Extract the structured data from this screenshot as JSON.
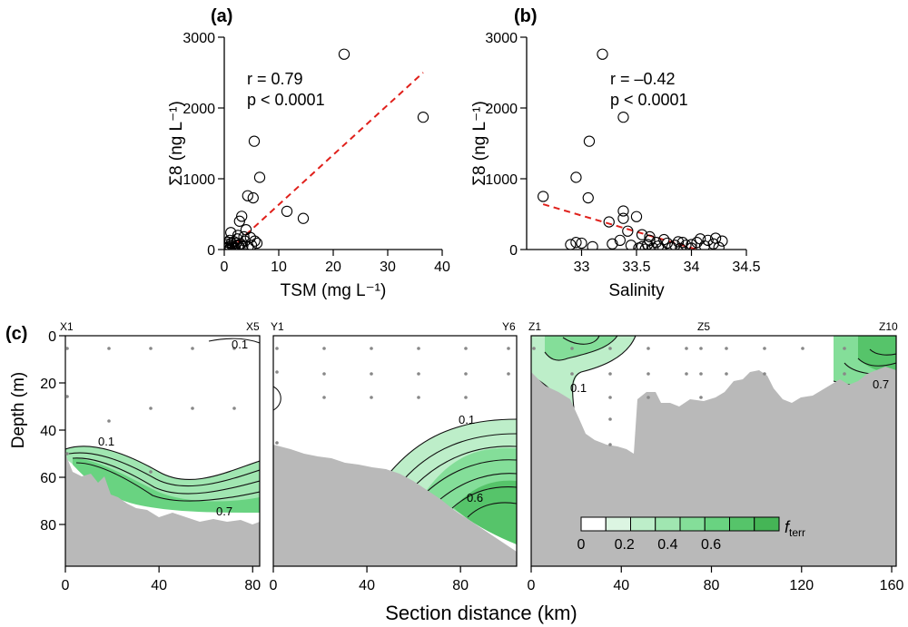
{
  "chart_data": [
    {
      "panel": "(a)",
      "type": "scatter",
      "xlabel": "TSM (mg L⁻¹)",
      "ylabel": "Σ8 (ng L⁻¹)",
      "xlim": [
        0,
        40
      ],
      "ylim": [
        0,
        3000
      ],
      "xticks": [
        "0",
        "10",
        "20",
        "30",
        "40"
      ],
      "yticks": [
        "0",
        "1000",
        "2000",
        "3000"
      ],
      "stat_r": "r = 0.79",
      "stat_p": "p < 0.0001",
      "fit_line": {
        "x": [
          1,
          36.5
        ],
        "y": [
          0,
          2500
        ],
        "color": "#e0201b",
        "style": "dashed"
      },
      "points": [
        {
          "x": 22,
          "y": 2760
        },
        {
          "x": 36.5,
          "y": 1870
        },
        {
          "x": 5.5,
          "y": 1530
        },
        {
          "x": 6.5,
          "y": 1020
        },
        {
          "x": 4.3,
          "y": 760
        },
        {
          "x": 5.3,
          "y": 730
        },
        {
          "x": 11.5,
          "y": 540
        },
        {
          "x": 14.5,
          "y": 440
        },
        {
          "x": 3.2,
          "y": 470
        },
        {
          "x": 2.8,
          "y": 400
        },
        {
          "x": 4.0,
          "y": 280
        },
        {
          "x": 1.2,
          "y": 240
        },
        {
          "x": 2.5,
          "y": 200
        },
        {
          "x": 3.6,
          "y": 180
        },
        {
          "x": 4.8,
          "y": 170
        },
        {
          "x": 5.6,
          "y": 120
        },
        {
          "x": 1.0,
          "y": 130
        },
        {
          "x": 1.8,
          "y": 110
        },
        {
          "x": 2.2,
          "y": 90
        },
        {
          "x": 3.0,
          "y": 80
        },
        {
          "x": 0.6,
          "y": 70
        },
        {
          "x": 1.4,
          "y": 60
        },
        {
          "x": 2.6,
          "y": 55
        },
        {
          "x": 3.4,
          "y": 50
        },
        {
          "x": 0.8,
          "y": 40
        },
        {
          "x": 1.6,
          "y": 35
        },
        {
          "x": 2.0,
          "y": 30
        },
        {
          "x": 4.4,
          "y": 40
        },
        {
          "x": 0.5,
          "y": 20
        },
        {
          "x": 1.1,
          "y": 15
        },
        {
          "x": 1.9,
          "y": 10
        },
        {
          "x": 2.9,
          "y": 20
        },
        {
          "x": 0.3,
          "y": 5
        },
        {
          "x": 0.9,
          "y": 5
        },
        {
          "x": 5.0,
          "y": 60
        },
        {
          "x": 3.8,
          "y": 120
        },
        {
          "x": 2.4,
          "y": 150
        },
        {
          "x": 1.3,
          "y": 90
        },
        {
          "x": 0.7,
          "y": 100
        },
        {
          "x": 6.0,
          "y": 90
        }
      ]
    },
    {
      "panel": "(b)",
      "type": "scatter",
      "xlabel": "Salinity",
      "ylabel": "Σ8 (ng L⁻¹)",
      "xlim": [
        32.5,
        34.5
      ],
      "ylim": [
        0,
        3000
      ],
      "xticks": [
        "33",
        "33.5",
        "34",
        "34.5"
      ],
      "yticks": [
        "0",
        "1000",
        "2000",
        "3000"
      ],
      "stat_r": "r = –0.42",
      "stat_p": "p < 0.0001",
      "fit_line": {
        "x": [
          32.65,
          34.05
        ],
        "y": [
          640,
          0
        ],
        "color": "#e0201b",
        "style": "dashed"
      },
      "points": [
        {
          "x": 33.19,
          "y": 2760
        },
        {
          "x": 33.38,
          "y": 1870
        },
        {
          "x": 33.07,
          "y": 1530
        },
        {
          "x": 32.95,
          "y": 1020
        },
        {
          "x": 32.65,
          "y": 750
        },
        {
          "x": 33.06,
          "y": 730
        },
        {
          "x": 33.38,
          "y": 545
        },
        {
          "x": 33.38,
          "y": 440
        },
        {
          "x": 33.5,
          "y": 465
        },
        {
          "x": 33.25,
          "y": 390
        },
        {
          "x": 33.42,
          "y": 260
        },
        {
          "x": 33.55,
          "y": 210
        },
        {
          "x": 33.62,
          "y": 180
        },
        {
          "x": 33.35,
          "y": 130
        },
        {
          "x": 33.28,
          "y": 80
        },
        {
          "x": 32.9,
          "y": 70
        },
        {
          "x": 32.95,
          "y": 100
        },
        {
          "x": 33.0,
          "y": 90
        },
        {
          "x": 33.1,
          "y": 40
        },
        {
          "x": 33.45,
          "y": 60
        },
        {
          "x": 33.55,
          "y": 40
        },
        {
          "x": 33.6,
          "y": 70
        },
        {
          "x": 33.65,
          "y": 20
        },
        {
          "x": 33.7,
          "y": 50
        },
        {
          "x": 33.72,
          "y": 10
        },
        {
          "x": 33.78,
          "y": 90
        },
        {
          "x": 33.82,
          "y": 30
        },
        {
          "x": 33.88,
          "y": 110
        },
        {
          "x": 33.9,
          "y": 15
        },
        {
          "x": 33.95,
          "y": 60
        },
        {
          "x": 34.0,
          "y": 20
        },
        {
          "x": 34.05,
          "y": 100
        },
        {
          "x": 34.08,
          "y": 150
        },
        {
          "x": 34.12,
          "y": 50
        },
        {
          "x": 34.15,
          "y": 130
        },
        {
          "x": 34.2,
          "y": 80
        },
        {
          "x": 34.25,
          "y": 30
        },
        {
          "x": 34.28,
          "y": 120
        },
        {
          "x": 34.22,
          "y": 160
        },
        {
          "x": 33.62,
          "y": 130
        },
        {
          "x": 33.68,
          "y": 100
        },
        {
          "x": 33.58,
          "y": 5
        },
        {
          "x": 33.75,
          "y": 140
        },
        {
          "x": 33.85,
          "y": 60
        },
        {
          "x": 33.92,
          "y": 100
        },
        {
          "x": 34.0,
          "y": 70
        },
        {
          "x": 33.52,
          "y": 20
        }
      ]
    },
    {
      "panel": "(c)",
      "type": "contour",
      "xlabel": "Section distance (km)",
      "ylabel": "Depth (m)",
      "yticks": [
        "0",
        "20",
        "40",
        "60",
        "80"
      ],
      "colorbar": {
        "label": "f",
        "label_sub": "terr",
        "ticks": [
          "0",
          "0.2",
          "0.4",
          "0.6"
        ],
        "colors": [
          "#ffffff",
          "#dcf5e2",
          "#bdeec9",
          "#a0e6b1",
          "#84de99",
          "#69d381",
          "#56c46a",
          "#45b556"
        ]
      },
      "sections": [
        {
          "name_left": "X1",
          "name_right": "X5",
          "xlim": [
            0,
            83
          ],
          "xticks": [
            "0",
            "40",
            "80"
          ],
          "contour_labels": [
            "0.1",
            "0.1",
            "0.7"
          ]
        },
        {
          "name_left": "Y1",
          "name_right": "Y6",
          "xlim": [
            0,
            104
          ],
          "xticks": [
            "0",
            "40",
            "80"
          ],
          "contour_labels": [
            "0.1",
            "0.6"
          ]
        },
        {
          "name_left": "Z1",
          "name_mid": "Z5",
          "name_right": "Z10",
          "xlim": [
            0,
            162
          ],
          "xticks": [
            "0",
            "40",
            "80",
            "120",
            "160"
          ],
          "contour_labels": [
            "0.1",
            "0.7"
          ]
        }
      ]
    }
  ]
}
